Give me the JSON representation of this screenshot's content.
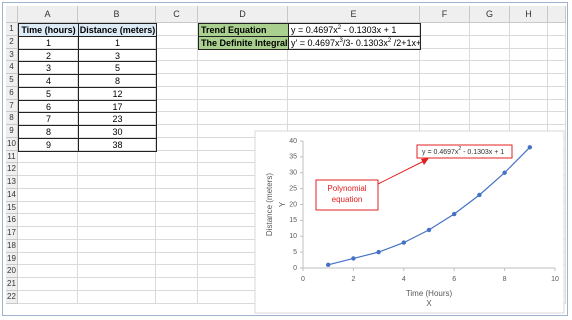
{
  "sheet": {
    "columns": [
      "A",
      "B",
      "C",
      "D",
      "E",
      "F",
      "G",
      "H"
    ],
    "row_numbers": [
      1,
      2,
      3,
      4,
      5,
      6,
      7,
      8,
      9,
      10,
      11,
      12,
      13,
      14,
      15,
      16,
      17,
      18,
      19,
      20,
      21,
      22
    ],
    "table": {
      "header": [
        "Time (hours)",
        "Distance (meters)"
      ],
      "rows": [
        [
          1,
          1
        ],
        [
          2,
          3
        ],
        [
          3,
          5
        ],
        [
          4,
          8
        ],
        [
          5,
          12
        ],
        [
          6,
          17
        ],
        [
          7,
          23
        ],
        [
          8,
          30
        ],
        [
          9,
          38
        ]
      ]
    },
    "equations": [
      {
        "label": "Trend Equation",
        "parts": [
          "y = 0.4697x",
          "2",
          " - 0.1303x + 1"
        ]
      },
      {
        "label": "The Definite Integral",
        "parts": [
          "y' = 0.4697x",
          "3",
          "/3- 0.1303x",
          "2",
          " /2+1x+c"
        ]
      }
    ]
  },
  "chart_data": {
    "type": "scatter",
    "x": [
      1,
      2,
      3,
      4,
      5,
      6,
      7,
      8,
      9
    ],
    "series": [
      {
        "color": "#4472c4",
        "values": [
          1,
          3,
          5,
          8,
          12,
          17,
          23,
          30,
          38
        ]
      }
    ],
    "xlim": [
      0,
      10
    ],
    "xticks": [
      0,
      2,
      4,
      6,
      8,
      10
    ],
    "ylim": [
      0,
      40
    ],
    "yticks": [
      0,
      5,
      10,
      15,
      20,
      25,
      30,
      35,
      40
    ],
    "x_axis_label": "Time (Hours)",
    "x_axis_symbol": "X",
    "y_axis_label": "Distance (meters)",
    "y_axis_symbol": "Y",
    "trendline_equation": [
      "y = 0.4697x",
      "2",
      " - 0.1303x + 1"
    ],
    "annotation": [
      "Polynomial",
      "equation"
    ],
    "grid": false
  }
}
